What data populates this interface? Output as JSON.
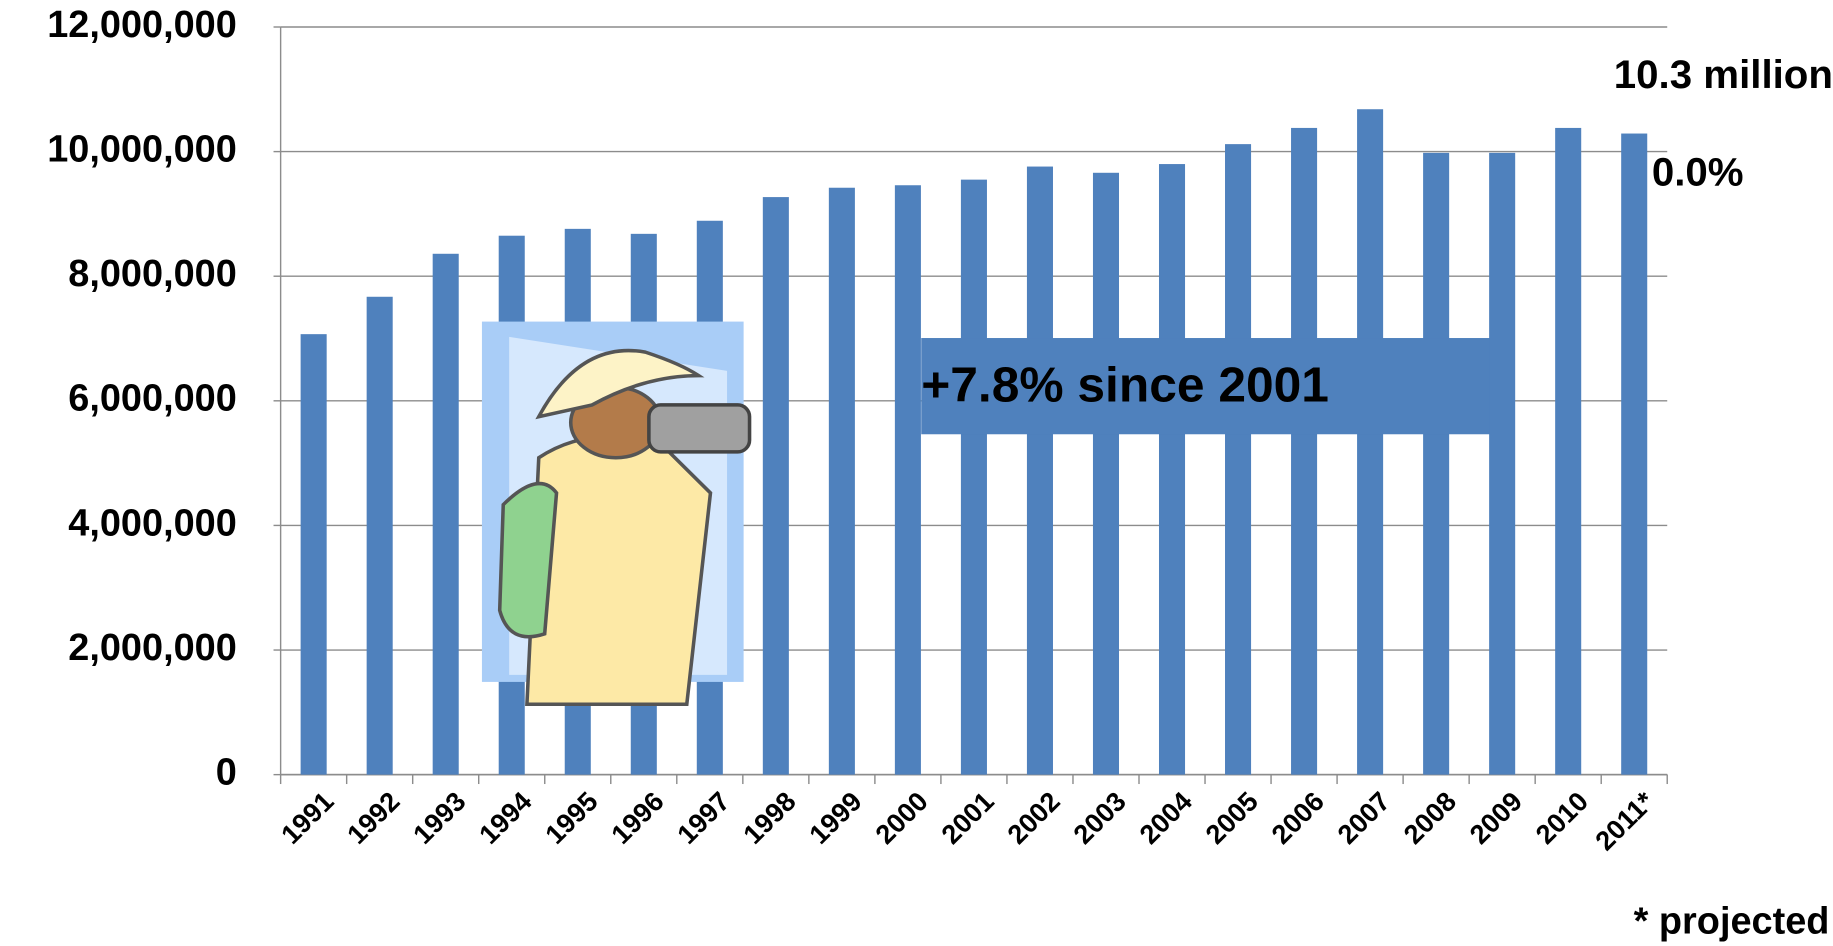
{
  "chart_data": {
    "type": "bar",
    "categories": [
      "1991",
      "1992",
      "1993",
      "1994",
      "1995",
      "1996",
      "1997",
      "1998",
      "1999",
      "2000",
      "2001",
      "2002",
      "2003",
      "2004",
      "2005",
      "2006",
      "2007",
      "2008",
      "2009",
      "2010",
      "2011*"
    ],
    "values": [
      7070000,
      7670000,
      8360000,
      8650000,
      8760000,
      8680000,
      8890000,
      9270000,
      9420000,
      9460000,
      9550000,
      9760000,
      9660000,
      9800000,
      10120000,
      10380000,
      10680000,
      9980000,
      9980000,
      10380000,
      10290000
    ],
    "color": "#4f81bd",
    "ylim": [
      0,
      12000000
    ],
    "yticks": [
      0,
      {
        "value": 2000000,
        "label": "2,000,000"
      },
      {
        "value": 4000000,
        "label": "4,000,000"
      },
      {
        "value": 6000000,
        "label": "6,000,000"
      },
      {
        "value": 8000000,
        "label": "8,000,000"
      },
      {
        "value": 10000000,
        "label": "10,000,000"
      },
      {
        "value": 12000000,
        "label": "12,000,000"
      }
    ],
    "grid": true,
    "annotations": [
      "10.3 million",
      "0.0%",
      "+7.8% since 2001",
      "* projected"
    ]
  }
}
